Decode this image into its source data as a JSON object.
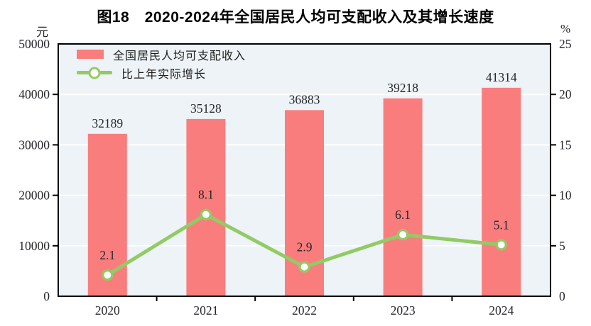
{
  "chart_data": {
    "type": "bar",
    "title": "图18　2020-2024年全国居民人均可支配收入及其增长速度",
    "categories": [
      "2020",
      "2021",
      "2022",
      "2023",
      "2024"
    ],
    "series": [
      {
        "name": "全国居民人均可支配收入",
        "type": "bar",
        "axis": "left",
        "values": [
          32189,
          35128,
          36883,
          39218,
          41314
        ],
        "color": "#fa7d7d"
      },
      {
        "name": "比上年实际增长",
        "type": "line",
        "axis": "right",
        "values": [
          2.1,
          8.1,
          2.9,
          6.1,
          5.1
        ],
        "color": "#92cb65",
        "marker": "open-circle",
        "marker_fill": "#ffffff"
      }
    ],
    "left_axis": {
      "unit": "元",
      "min": 0,
      "max": 50000,
      "step": 10000,
      "ticks": [
        "0",
        "10000",
        "20000",
        "30000",
        "40000",
        "50000"
      ]
    },
    "right_axis": {
      "unit": "%",
      "min": 0,
      "max": 25,
      "step": 5,
      "ticks": [
        "0",
        "5",
        "10",
        "15",
        "20",
        "25"
      ]
    },
    "legend_position": "top-left-inside",
    "grid": true,
    "grid_color": "#ffffff",
    "plot_bg": "#edf3f6",
    "frame_color": "#000000",
    "label_color": "#26262c"
  }
}
